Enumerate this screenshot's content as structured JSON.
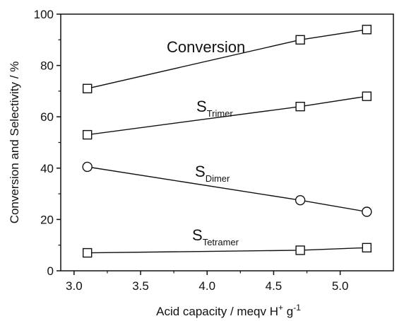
{
  "chart_data": {
    "type": "line",
    "title": "",
    "xlabel": "Acid capacity / meqv H",
    "xlabel_sup": "+",
    "xlabel_mid": " g",
    "xlabel_sup2": "-1",
    "ylabel": "Conversion and Selectivity / %",
    "xlim": [
      2.9,
      5.4
    ],
    "ylim": [
      0,
      100
    ],
    "xticks": [
      "3.0",
      "3.5",
      "4.0",
      "4.5",
      "5.0"
    ],
    "yticks": [
      "0",
      "20",
      "40",
      "60",
      "80",
      "100"
    ],
    "grid": false,
    "x": [
      3.1,
      4.7,
      5.2
    ],
    "series": [
      {
        "name": "Conversion",
        "label_main": "Conversion",
        "label_sub": "",
        "marker": "square",
        "values": [
          71,
          90,
          94
        ]
      },
      {
        "name": "STrimer",
        "label_main": "S",
        "label_sub": "Trimer",
        "marker": "square",
        "values": [
          53,
          64,
          68
        ]
      },
      {
        "name": "SDimer",
        "label_main": "S",
        "label_sub": "Dimer",
        "marker": "circle",
        "values": [
          40.5,
          27.5,
          23
        ]
      },
      {
        "name": "STetramer",
        "label_main": "S",
        "label_sub": "Tetramer",
        "marker": "square",
        "values": [
          7,
          8,
          9
        ]
      }
    ]
  }
}
